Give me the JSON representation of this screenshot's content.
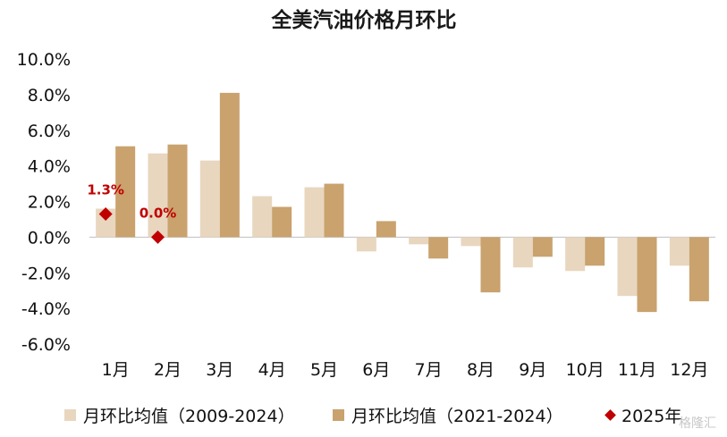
{
  "colors": {
    "series1": "#E8D6BF",
    "series2": "#C9A26E",
    "marker": "#C00000",
    "axis": "#BFBFBF"
  },
  "chart_data": {
    "type": "bar",
    "title": "全美汽油价格月环比",
    "categories": [
      "1月",
      "2月",
      "3月",
      "4月",
      "5月",
      "6月",
      "7月",
      "8月",
      "9月",
      "10月",
      "11月",
      "12月"
    ],
    "ylim": [
      -6.0,
      10.0
    ],
    "yticks": [
      10.0,
      8.0,
      6.0,
      4.0,
      2.0,
      0.0,
      -2.0,
      -4.0,
      -6.0
    ],
    "ytick_labels": [
      "10.0%",
      "8.0%",
      "6.0%",
      "4.0%",
      "2.0%",
      "0.0%",
      "-2.0%",
      "-4.0%",
      "-6.0%"
    ],
    "series": [
      {
        "name": "月环比均值（2009-2024）",
        "values": [
          1.6,
          4.7,
          4.3,
          2.3,
          2.8,
          -0.8,
          -0.4,
          -0.5,
          -1.7,
          -1.9,
          -3.3,
          -1.6
        ]
      },
      {
        "name": "月环比均值（2021-2024）",
        "values": [
          5.1,
          5.2,
          8.1,
          1.7,
          3.0,
          0.9,
          -1.2,
          -3.1,
          -1.1,
          -1.6,
          -4.2,
          -3.6
        ]
      }
    ],
    "marker_series": {
      "name": "2025年",
      "points": [
        {
          "category": "1月",
          "value": 1.3,
          "label": "1.3%"
        },
        {
          "category": "2月",
          "value": 0.0,
          "label": "0.0%"
        }
      ]
    },
    "grid": false,
    "legend": "bottom"
  },
  "watermark": "格隆汇"
}
